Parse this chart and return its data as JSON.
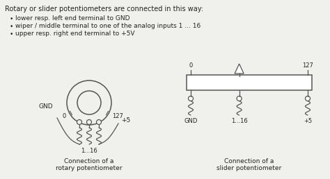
{
  "title_text": "Rotary or slider potentiometers are connected in this way:",
  "bullets": [
    "lower resp. left end terminal to GND",
    "wiper / middle terminal to one of the analog inputs 1 ... 16",
    "upper resp. right end terminal to +5V"
  ],
  "rotary_label": "Connection of a\nrotary potentiometer",
  "slider_label": "Connection of a\nslider potentiometer",
  "bg_color": "#f0f0ec",
  "line_color": "#555555",
  "text_color": "#222222",
  "fig_w": 4.74,
  "fig_h": 2.58,
  "dpi": 100
}
